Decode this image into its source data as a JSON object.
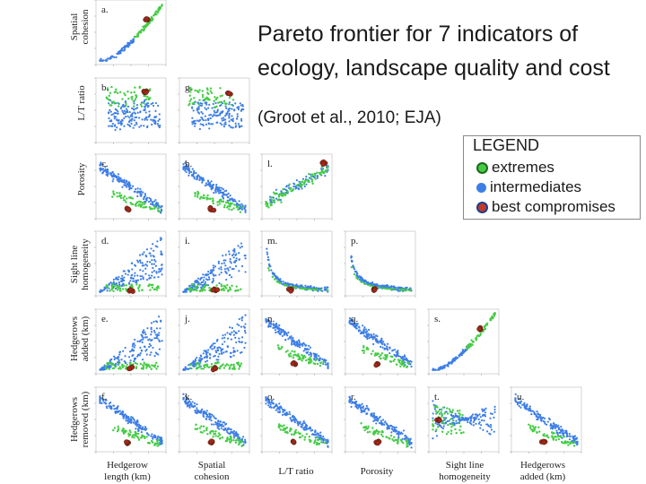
{
  "header": {
    "title": "Pareto frontier for 7 indicators of ecology, landscape quality and cost",
    "citation": "(Groot et al., 2010; EJA)"
  },
  "legend": {
    "title": "LEGEND",
    "items": [
      {
        "label": "extremes",
        "color": "#44cc44"
      },
      {
        "label": "intermediates",
        "color": "#3d7ee6"
      },
      {
        "label": "best compromises",
        "color": "#c0392b"
      }
    ]
  },
  "colors": {
    "extremes": "#44cc44",
    "intermediates": "#3d7ee6",
    "best": "#a0281a"
  },
  "chart_data": {
    "type": "scatter",
    "title": "Pareto frontier for 7 indicators of ecology, landscape quality and cost",
    "row_labels": [
      "Spatial cohesion",
      "L/T ratio",
      "Porosity",
      "Sight line homogeneity",
      "Hedgerows added (km)",
      "Hedgerows removed (km)"
    ],
    "column_labels": [
      "Hedgerow length (km)",
      "Spatial cohesion",
      "L/T ratio",
      "Porosity",
      "Sight line homogeneity",
      "Hedgerows added (km)"
    ],
    "panels": [
      {
        "label": "a.",
        "row": 0,
        "col": 0,
        "pattern": "curve-up"
      },
      {
        "label": "b.",
        "row": 1,
        "col": 0,
        "pattern": "cloud-mid"
      },
      {
        "label": "g.",
        "row": 1,
        "col": 1,
        "pattern": "cloud-mid"
      },
      {
        "label": "c.",
        "row": 2,
        "col": 0,
        "pattern": "decline"
      },
      {
        "label": "h.",
        "row": 2,
        "col": 1,
        "pattern": "decline"
      },
      {
        "label": "l.",
        "row": 2,
        "col": 2,
        "pattern": "cloud-rise"
      },
      {
        "label": "d.",
        "row": 3,
        "col": 0,
        "pattern": "fan-up"
      },
      {
        "label": "i.",
        "row": 3,
        "col": 1,
        "pattern": "fan-up"
      },
      {
        "label": "m.",
        "row": 3,
        "col": 2,
        "pattern": "hyperbola"
      },
      {
        "label": "p.",
        "row": 3,
        "col": 3,
        "pattern": "hyperbola"
      },
      {
        "label": "e.",
        "row": 4,
        "col": 0,
        "pattern": "fan-up"
      },
      {
        "label": "j.",
        "row": 4,
        "col": 1,
        "pattern": "fan-up"
      },
      {
        "label": "n.",
        "row": 4,
        "col": 2,
        "pattern": "decline"
      },
      {
        "label": "q.",
        "row": 4,
        "col": 3,
        "pattern": "decline"
      },
      {
        "label": "s.",
        "row": 4,
        "col": 4,
        "pattern": "curve-up"
      },
      {
        "label": "f.",
        "row": 5,
        "col": 0,
        "pattern": "decline"
      },
      {
        "label": "k.",
        "row": 5,
        "col": 1,
        "pattern": "decline"
      },
      {
        "label": "o.",
        "row": 5,
        "col": 2,
        "pattern": "decline"
      },
      {
        "label": "r.",
        "row": 5,
        "col": 3,
        "pattern": "decline"
      },
      {
        "label": "t.",
        "row": 5,
        "col": 4,
        "pattern": "fan-left"
      },
      {
        "label": "u.",
        "row": 5,
        "col": 5,
        "pattern": "decline"
      }
    ]
  }
}
